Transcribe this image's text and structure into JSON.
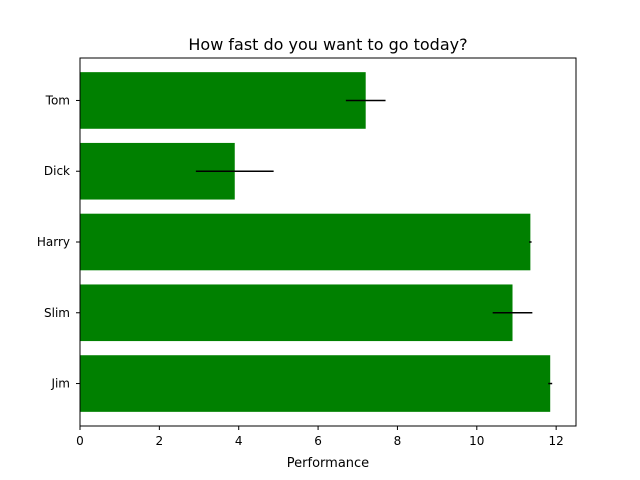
{
  "chart_data": {
    "type": "bar",
    "orientation": "horizontal",
    "title": "How fast do you want to go today?",
    "xlabel": "Performance",
    "ylabel": "",
    "xlim": [
      0,
      12.5
    ],
    "xticks": [
      0,
      2,
      4,
      6,
      8,
      10,
      12
    ],
    "categories": [
      "Tom",
      "Dick",
      "Harry",
      "Slim",
      "Jim"
    ],
    "values": [
      7.2,
      3.9,
      11.35,
      10.9,
      11.85
    ],
    "errors": [
      0.5,
      0.98,
      0.03,
      0.5,
      0.05
    ],
    "bar_color": "#008000",
    "error_color": "#000000",
    "grid": false,
    "legend": "none"
  }
}
